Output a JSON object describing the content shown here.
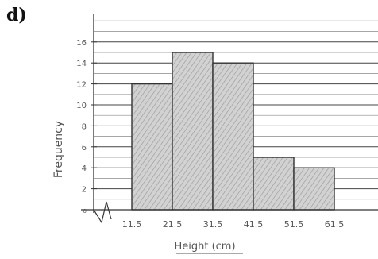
{
  "part_label": "d)",
  "chart_data": {
    "type": "bar",
    "style": "hand-drawn histogram",
    "categories": [
      "11.5–21.5",
      "21.5–31.5",
      "31.5–41.5",
      "41.5–51.5",
      "51.5–61.5"
    ],
    "bin_edges": [
      11.5,
      21.5,
      31.5,
      41.5,
      51.5,
      61.5
    ],
    "x_tick_labels": [
      "11.5",
      "21.5",
      "31.5",
      "41.5",
      "51.5",
      "61.5"
    ],
    "values": [
      12,
      15,
      14,
      5,
      4
    ],
    "y_ticks": [
      0,
      2,
      4,
      6,
      8,
      10,
      12,
      14,
      16
    ],
    "ylim": [
      0,
      18
    ],
    "xlabel": "Height (cm)",
    "ylabel": "Frequency",
    "grid": true,
    "axis_break": "zigzag",
    "bar_fill": "#c9c9c9",
    "line_color": "#333333"
  }
}
